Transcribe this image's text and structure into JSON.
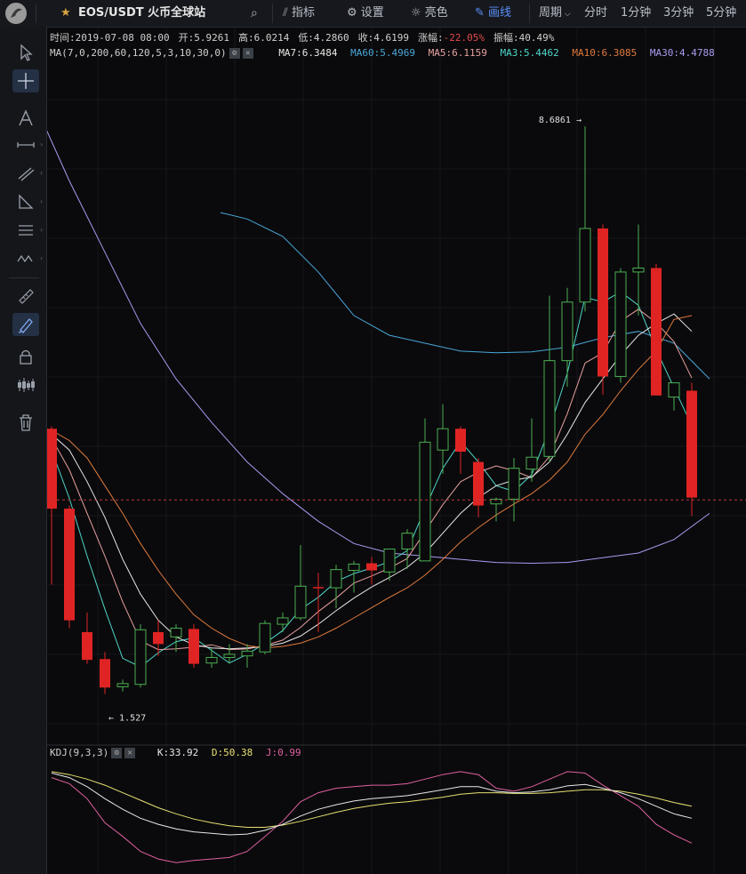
{
  "header": {
    "symbol": "EOS/USDT 火币全球站",
    "indicators_label": "指标",
    "settings_label": "设置",
    "theme_label": "亮色",
    "draw_label": "画线",
    "period_label": "周期",
    "period_options": [
      "分时",
      "1分钟",
      "3分钟",
      "5分钟"
    ],
    "accent_color": "#5b8ff9"
  },
  "info": {
    "time": "时间:2019-07-08 08:00",
    "open": "开:5.9261",
    "high": "高:6.0214",
    "low": "低:4.2860",
    "close": "收:4.6199",
    "change_label": "涨幅:",
    "change_value": "-22.05%",
    "amplitude": "振幅:40.49%"
  },
  "ma_legend": {
    "params": "MA(7,0,200,60,120,5,3,10,30,0)",
    "items": [
      {
        "text": "MA7:6.3484",
        "color": "#e8e8e8"
      },
      {
        "text": "MA60:5.4969",
        "color": "#4aa6d8"
      },
      {
        "text": "MA5:6.1159",
        "color": "#e8a0a0"
      },
      {
        "text": "MA3:5.4462",
        "color": "#4fd6c8"
      },
      {
        "text": "MA10:6.3085",
        "color": "#e07a3c"
      },
      {
        "text": "MA30:4.4788",
        "color": "#a89cf0"
      }
    ]
  },
  "kdj_legend": {
    "params": "KDJ(9,3,3)",
    "k": "K:33.92",
    "d": "D:50.38",
    "j": "J:0.99",
    "k_color": "#e8e8e8",
    "d_color": "#e8e070",
    "j_color": "#e060a0"
  },
  "chart_data": {
    "type": "candlestick",
    "colors": {
      "up": "#4caf50",
      "down": "#e02424"
    },
    "annotations": {
      "high_label": "8.6861 →",
      "low_label": "← 1.527"
    },
    "y_range": [
      1.3,
      9.5
    ],
    "candles": [
      {
        "o": 4.87,
        "h": 4.9,
        "l": 2.9,
        "c": 3.86
      },
      {
        "o": 3.86,
        "h": 3.9,
        "l": 2.35,
        "c": 2.45
      },
      {
        "o": 2.3,
        "h": 2.55,
        "l": 1.9,
        "c": 1.95
      },
      {
        "o": 1.96,
        "h": 2.05,
        "l": 1.52,
        "c": 1.6
      },
      {
        "o": 1.61,
        "h": 1.7,
        "l": 1.55,
        "c": 1.65
      },
      {
        "o": 1.64,
        "h": 2.4,
        "l": 1.6,
        "c": 2.33
      },
      {
        "o": 2.3,
        "h": 2.45,
        "l": 2.0,
        "c": 2.15
      },
      {
        "o": 2.24,
        "h": 2.4,
        "l": 2.05,
        "c": 2.35
      },
      {
        "o": 2.34,
        "h": 2.4,
        "l": 1.85,
        "c": 1.9
      },
      {
        "o": 1.91,
        "h": 2.1,
        "l": 1.85,
        "c": 1.98
      },
      {
        "o": 1.98,
        "h": 2.15,
        "l": 1.9,
        "c": 2.02
      },
      {
        "o": 2.0,
        "h": 2.15,
        "l": 1.85,
        "c": 2.06
      },
      {
        "o": 2.05,
        "h": 2.45,
        "l": 2.02,
        "c": 2.41
      },
      {
        "o": 2.4,
        "h": 2.55,
        "l": 2.3,
        "c": 2.48
      },
      {
        "o": 2.48,
        "h": 3.4,
        "l": 2.45,
        "c": 2.88
      },
      {
        "o": 2.87,
        "h": 3.05,
        "l": 2.3,
        "c": 2.86
      },
      {
        "o": 2.86,
        "h": 3.15,
        "l": 2.6,
        "c": 3.09
      },
      {
        "o": 3.08,
        "h": 3.2,
        "l": 2.8,
        "c": 3.16
      },
      {
        "o": 3.17,
        "h": 3.25,
        "l": 2.9,
        "c": 3.08
      },
      {
        "o": 3.06,
        "h": 3.3,
        "l": 2.95,
        "c": 3.35
      },
      {
        "o": 3.35,
        "h": 3.6,
        "l": 3.1,
        "c": 3.55
      },
      {
        "o": 3.2,
        "h": 5.0,
        "l": 3.2,
        "c": 4.7
      },
      {
        "o": 4.6,
        "h": 5.18,
        "l": 4.3,
        "c": 4.87
      },
      {
        "o": 4.87,
        "h": 4.9,
        "l": 4.3,
        "c": 4.58
      },
      {
        "o": 4.45,
        "h": 4.5,
        "l": 3.75,
        "c": 3.9
      },
      {
        "o": 3.92,
        "h": 4.0,
        "l": 3.7,
        "c": 3.98
      },
      {
        "o": 3.98,
        "h": 4.5,
        "l": 3.7,
        "c": 4.37
      },
      {
        "o": 4.36,
        "h": 5.0,
        "l": 4.2,
        "c": 4.51
      },
      {
        "o": 4.52,
        "h": 6.55,
        "l": 4.45,
        "c": 5.73
      },
      {
        "o": 5.73,
        "h": 6.65,
        "l": 5.4,
        "c": 6.47
      },
      {
        "o": 6.47,
        "h": 8.69,
        "l": 6.35,
        "c": 7.4
      },
      {
        "o": 7.4,
        "h": 7.45,
        "l": 5.3,
        "c": 5.53
      },
      {
        "o": 5.53,
        "h": 6.9,
        "l": 5.45,
        "c": 6.85
      },
      {
        "o": 6.85,
        "h": 7.45,
        "l": 6.3,
        "c": 6.9
      },
      {
        "o": 6.9,
        "h": 6.95,
        "l": 5.3,
        "c": 5.29
      },
      {
        "o": 5.27,
        "h": 5.45,
        "l": 5.1,
        "c": 5.45
      },
      {
        "o": 5.35,
        "h": 5.45,
        "l": 3.77,
        "c": 4.0
      }
    ],
    "ma_series": [
      {
        "name": "MA3",
        "color": "#4fd6c8",
        "values": [
          4.6,
          3.99,
          3.26,
          2.59,
          1.97,
          1.86,
          2.04,
          2.18,
          2.23,
          2.07,
          1.91,
          2.02,
          2.16,
          2.32,
          2.59,
          2.74,
          2.94,
          3.04,
          3.11,
          3.19,
          3.33,
          3.86,
          4.37,
          4.71,
          4.45,
          4.15,
          4.08,
          4.29,
          4.87,
          5.57,
          6.53,
          6.47,
          6.6,
          6.43,
          5.87,
          5.39,
          4.91
        ]
      },
      {
        "name": "MA5",
        "color": "#e8a0a0",
        "values": [
          4.75,
          4.35,
          3.8,
          3.26,
          2.68,
          2.19,
          2.08,
          2.09,
          2.11,
          2.14,
          2.08,
          2.09,
          2.13,
          2.2,
          2.36,
          2.56,
          2.73,
          2.92,
          3.01,
          3.11,
          3.23,
          3.57,
          3.91,
          4.2,
          4.32,
          4.4,
          4.34,
          4.25,
          4.52,
          5.06,
          5.7,
          5.83,
          6.23,
          6.38,
          6.21,
          5.97,
          5.51
        ]
      },
      {
        "name": "MA7",
        "color": "#e8e8e8",
        "values": [
          4.8,
          4.6,
          4.2,
          3.75,
          3.22,
          2.78,
          2.45,
          2.24,
          2.14,
          2.1,
          2.09,
          2.1,
          2.12,
          2.16,
          2.25,
          2.4,
          2.57,
          2.73,
          2.87,
          2.99,
          3.12,
          3.3,
          3.55,
          3.8,
          4.0,
          4.15,
          4.22,
          4.26,
          4.45,
          4.8,
          5.2,
          5.5,
          5.8,
          6.05,
          6.2,
          6.32,
          6.1
        ]
      },
      {
        "name": "MA10",
        "color": "#e07a3c",
        "values": [
          4.85,
          4.72,
          4.5,
          4.15,
          3.8,
          3.42,
          3.08,
          2.78,
          2.52,
          2.35,
          2.22,
          2.13,
          2.1,
          2.12,
          2.16,
          2.24,
          2.35,
          2.48,
          2.61,
          2.74,
          2.86,
          3.02,
          3.22,
          3.44,
          3.62,
          3.78,
          3.92,
          4.05,
          4.22,
          4.45,
          4.8,
          5.05,
          5.35,
          5.62,
          5.85,
          6.25,
          6.3
        ]
      },
      {
        "name": "MA30",
        "color": "#a89cf0",
        "values": [
          null,
          null,
          null,
          null,
          null,
          null,
          null,
          null,
          null,
          null,
          null,
          null,
          null,
          null,
          null,
          null,
          null,
          null,
          null,
          null,
          null,
          null,
          null,
          null,
          null,
          null,
          null,
          null,
          null,
          null,
          null,
          null,
          null,
          null,
          null,
          null,
          null
        ]
      },
      {
        "name": "MA60",
        "color": "#4aa6d8",
        "values": [
          null,
          null,
          null,
          null,
          null,
          null,
          null,
          null,
          null,
          null,
          null,
          null,
          null,
          null,
          null,
          null,
          null,
          null,
          null,
          null,
          null,
          null,
          null,
          null,
          null,
          null,
          null,
          null,
          null,
          null,
          null,
          null,
          null,
          null,
          null,
          null,
          null
        ]
      }
    ],
    "ma30_curve": [
      [
        -0.8,
        8.9
      ],
      [
        1,
        8.0
      ],
      [
        3,
        7.1
      ],
      [
        5,
        6.2
      ],
      [
        7,
        5.5
      ],
      [
        9,
        4.95
      ],
      [
        11,
        4.45
      ],
      [
        13,
        4.05
      ],
      [
        15,
        3.7
      ],
      [
        17,
        3.42
      ],
      [
        19,
        3.3
      ],
      [
        21,
        3.26
      ],
      [
        23,
        3.22
      ],
      [
        25,
        3.18
      ],
      [
        27,
        3.17
      ],
      [
        29,
        3.18
      ],
      [
        31,
        3.24
      ],
      [
        33,
        3.3
      ],
      [
        35,
        3.47
      ],
      [
        37,
        3.8
      ]
    ],
    "ma60_curve": [
      [
        9.5,
        7.6
      ],
      [
        11,
        7.52
      ],
      [
        13,
        7.3
      ],
      [
        15,
        6.85
      ],
      [
        17,
        6.3
      ],
      [
        19,
        6.05
      ],
      [
        21,
        5.95
      ],
      [
        23,
        5.85
      ],
      [
        25,
        5.83
      ],
      [
        27,
        5.84
      ],
      [
        29,
        5.9
      ],
      [
        31,
        6.02
      ],
      [
        33,
        6.1
      ],
      [
        35,
        5.95
      ],
      [
        37,
        5.5
      ]
    ],
    "price_line": 3.97,
    "kdj": {
      "y_range": [
        0,
        100
      ],
      "k": [
        94,
        88,
        76,
        60,
        46,
        34,
        26,
        20,
        16,
        14,
        12,
        13,
        18,
        26,
        37,
        46,
        52,
        57,
        60,
        62,
        64,
        68,
        72,
        76,
        76,
        70,
        68,
        69,
        72,
        77,
        79,
        74,
        68,
        60,
        50,
        40,
        34
      ],
      "d": [
        96,
        92,
        86,
        78,
        68,
        58,
        48,
        40,
        33,
        28,
        24,
        22,
        22,
        25,
        30,
        36,
        42,
        47,
        51,
        54,
        56,
        59,
        62,
        66,
        68,
        68,
        67,
        67,
        68,
        70,
        72,
        72,
        70,
        66,
        61,
        55,
        50
      ],
      "j": [
        88,
        80,
        60,
        28,
        10,
        -10,
        -20,
        -25,
        -22,
        -20,
        -18,
        -10,
        10,
        30,
        56,
        68,
        74,
        76,
        78,
        78,
        80,
        86,
        92,
        96,
        92,
        74,
        70,
        76,
        86,
        96,
        94,
        78,
        64,
        50,
        26,
        12,
        1
      ]
    }
  }
}
